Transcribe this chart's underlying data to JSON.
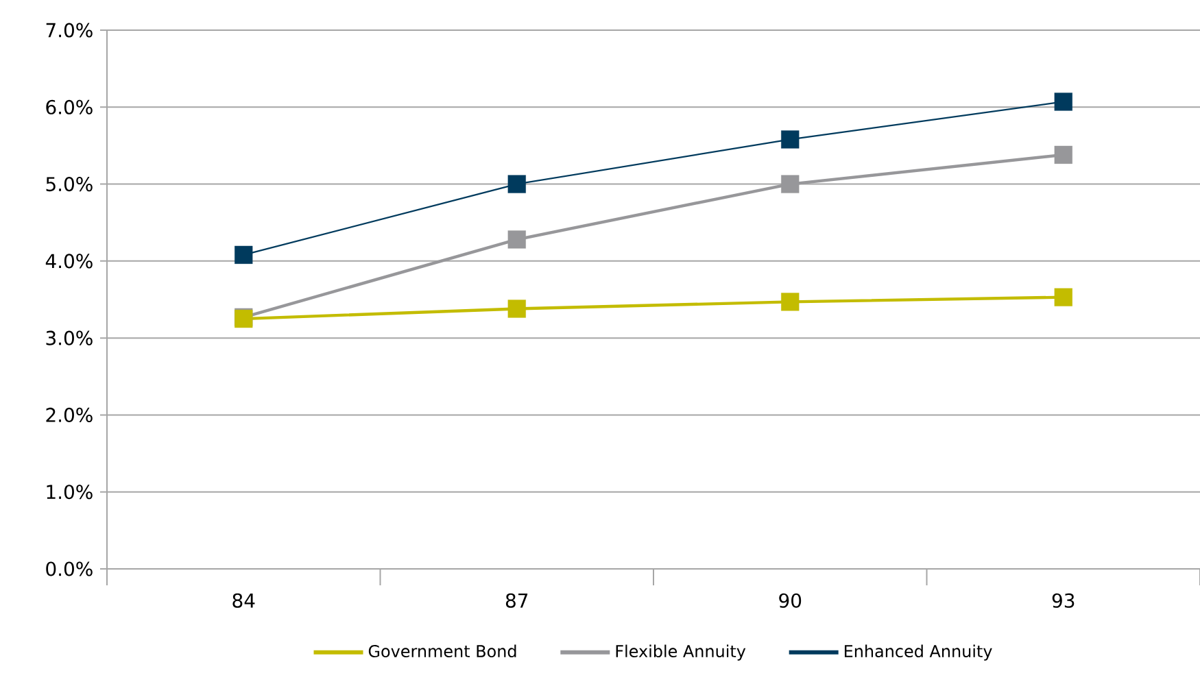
{
  "chart_data": {
    "type": "line",
    "categories": [
      "84",
      "87",
      "90",
      "93"
    ],
    "series": [
      {
        "name": "Government Bond",
        "color": "#c3bc00",
        "values": [
          3.25,
          3.38,
          3.47,
          3.53
        ]
      },
      {
        "name": "Flexible Annuity",
        "color": "#97979a",
        "values": [
          3.27,
          4.28,
          5.0,
          5.38
        ]
      },
      {
        "name": "Enhanced Annuity",
        "color": "#003a5d",
        "values": [
          4.08,
          5.0,
          5.58,
          6.07
        ]
      }
    ],
    "ylim": [
      0,
      7
    ],
    "yticks": [
      {
        "value": 0,
        "label": "0.0%"
      },
      {
        "value": 1,
        "label": "1.0%"
      },
      {
        "value": 2,
        "label": "2.0%"
      },
      {
        "value": 3,
        "label": "3.0%"
      },
      {
        "value": 4,
        "label": "4.0%"
      },
      {
        "value": 5,
        "label": "5.0%"
      },
      {
        "value": 6,
        "label": "6.0%"
      },
      {
        "value": 7,
        "label": "7.0%"
      }
    ],
    "grid": "y",
    "legend": "bottom",
    "marker": "square",
    "line_style": "solid"
  }
}
